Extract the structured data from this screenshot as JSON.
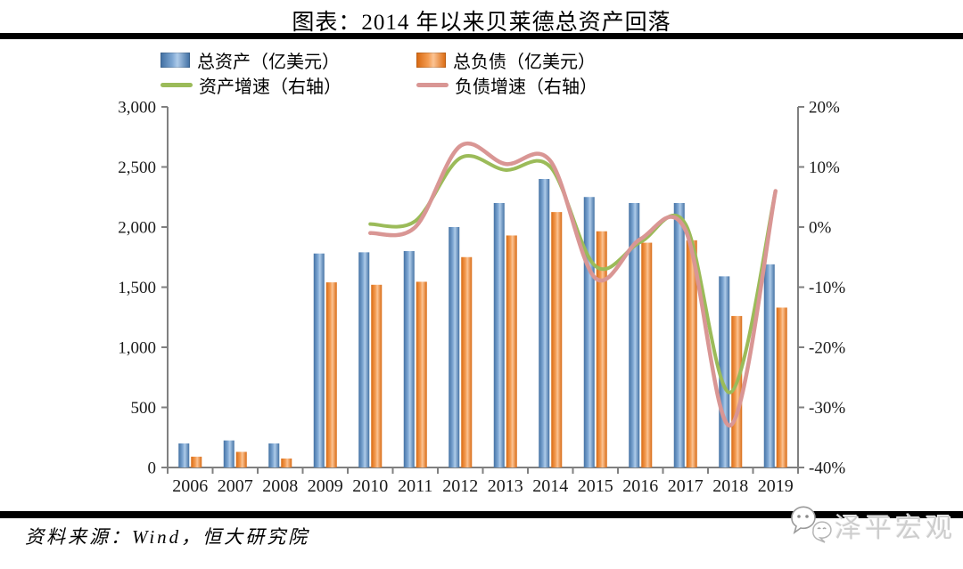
{
  "title": "图表：2014 年以来贝莱德总资产回落",
  "legend": [
    {
      "label": "总资产（亿美元）",
      "type": "bar",
      "color": "#4f81bd"
    },
    {
      "label": "总负债（亿美元）",
      "type": "bar",
      "color": "#ed7d31"
    },
    {
      "label": "资产增速（右轴）",
      "type": "line",
      "color": "#9bbb59"
    },
    {
      "label": "负债增速（右轴）",
      "type": "line",
      "color": "#d99694"
    }
  ],
  "footer": {
    "source": "资料来源：Wind，恒大研究院",
    "logo_text": "泽平宏观"
  },
  "colors": {
    "bar_blue_dark": "#4472a4",
    "bar_blue_light": "#aecbe9",
    "bar_orange_dark": "#d96b14",
    "bar_orange_light": "#fbc393",
    "line_green": "#9bbb59",
    "line_pink": "#d99694",
    "axis_gray": "#808080",
    "rule_black": "#000000"
  },
  "chart_data": {
    "type": "bar",
    "subtype": "bar+line combo, dual axis",
    "categories": [
      "2006",
      "2007",
      "2008",
      "2009",
      "2010",
      "2011",
      "2012",
      "2013",
      "2014",
      "2015",
      "2016",
      "2017",
      "2018",
      "2019"
    ],
    "series": [
      {
        "name": "总资产（亿美元）",
        "type": "bar",
        "axis": "left",
        "values": [
          200,
          225,
          200,
          1780,
          1790,
          1800,
          2000,
          2200,
          2400,
          2250,
          2200,
          2200,
          1590,
          1690
        ]
      },
      {
        "name": "总负债（亿美元）",
        "type": "bar",
        "axis": "left",
        "values": [
          90,
          130,
          75,
          1540,
          1520,
          1545,
          1750,
          1930,
          2125,
          1965,
          1870,
          1890,
          1260,
          1330
        ]
      },
      {
        "name": "资产增速（右轴）",
        "type": "line",
        "axis": "right",
        "unit": "%",
        "values": [
          null,
          null,
          null,
          null,
          0.5,
          1.0,
          11.5,
          9.5,
          10.0,
          -6.5,
          -2.5,
          0.5,
          -27.5,
          6.0
        ]
      },
      {
        "name": "负债增速（右轴）",
        "type": "line",
        "axis": "right",
        "unit": "%",
        "values": [
          null,
          null,
          null,
          null,
          -1.0,
          0.0,
          13.5,
          10.5,
          11.0,
          -8.5,
          -2.0,
          -0.5,
          -33.0,
          6.0
        ]
      }
    ],
    "left_axis": {
      "min": 0,
      "max": 3000,
      "step": 500,
      "tick_labels": [
        "0",
        "500",
        "1,000",
        "1,500",
        "2,000",
        "2,500",
        "3,000"
      ]
    },
    "right_axis": {
      "min": -40,
      "max": 20,
      "step": 10,
      "suffix": "%",
      "tick_labels": [
        "20%",
        "10%",
        "0%",
        "-10%",
        "-20%",
        "-30%",
        "-40%"
      ]
    },
    "grid": false,
    "legend_position": "top"
  }
}
